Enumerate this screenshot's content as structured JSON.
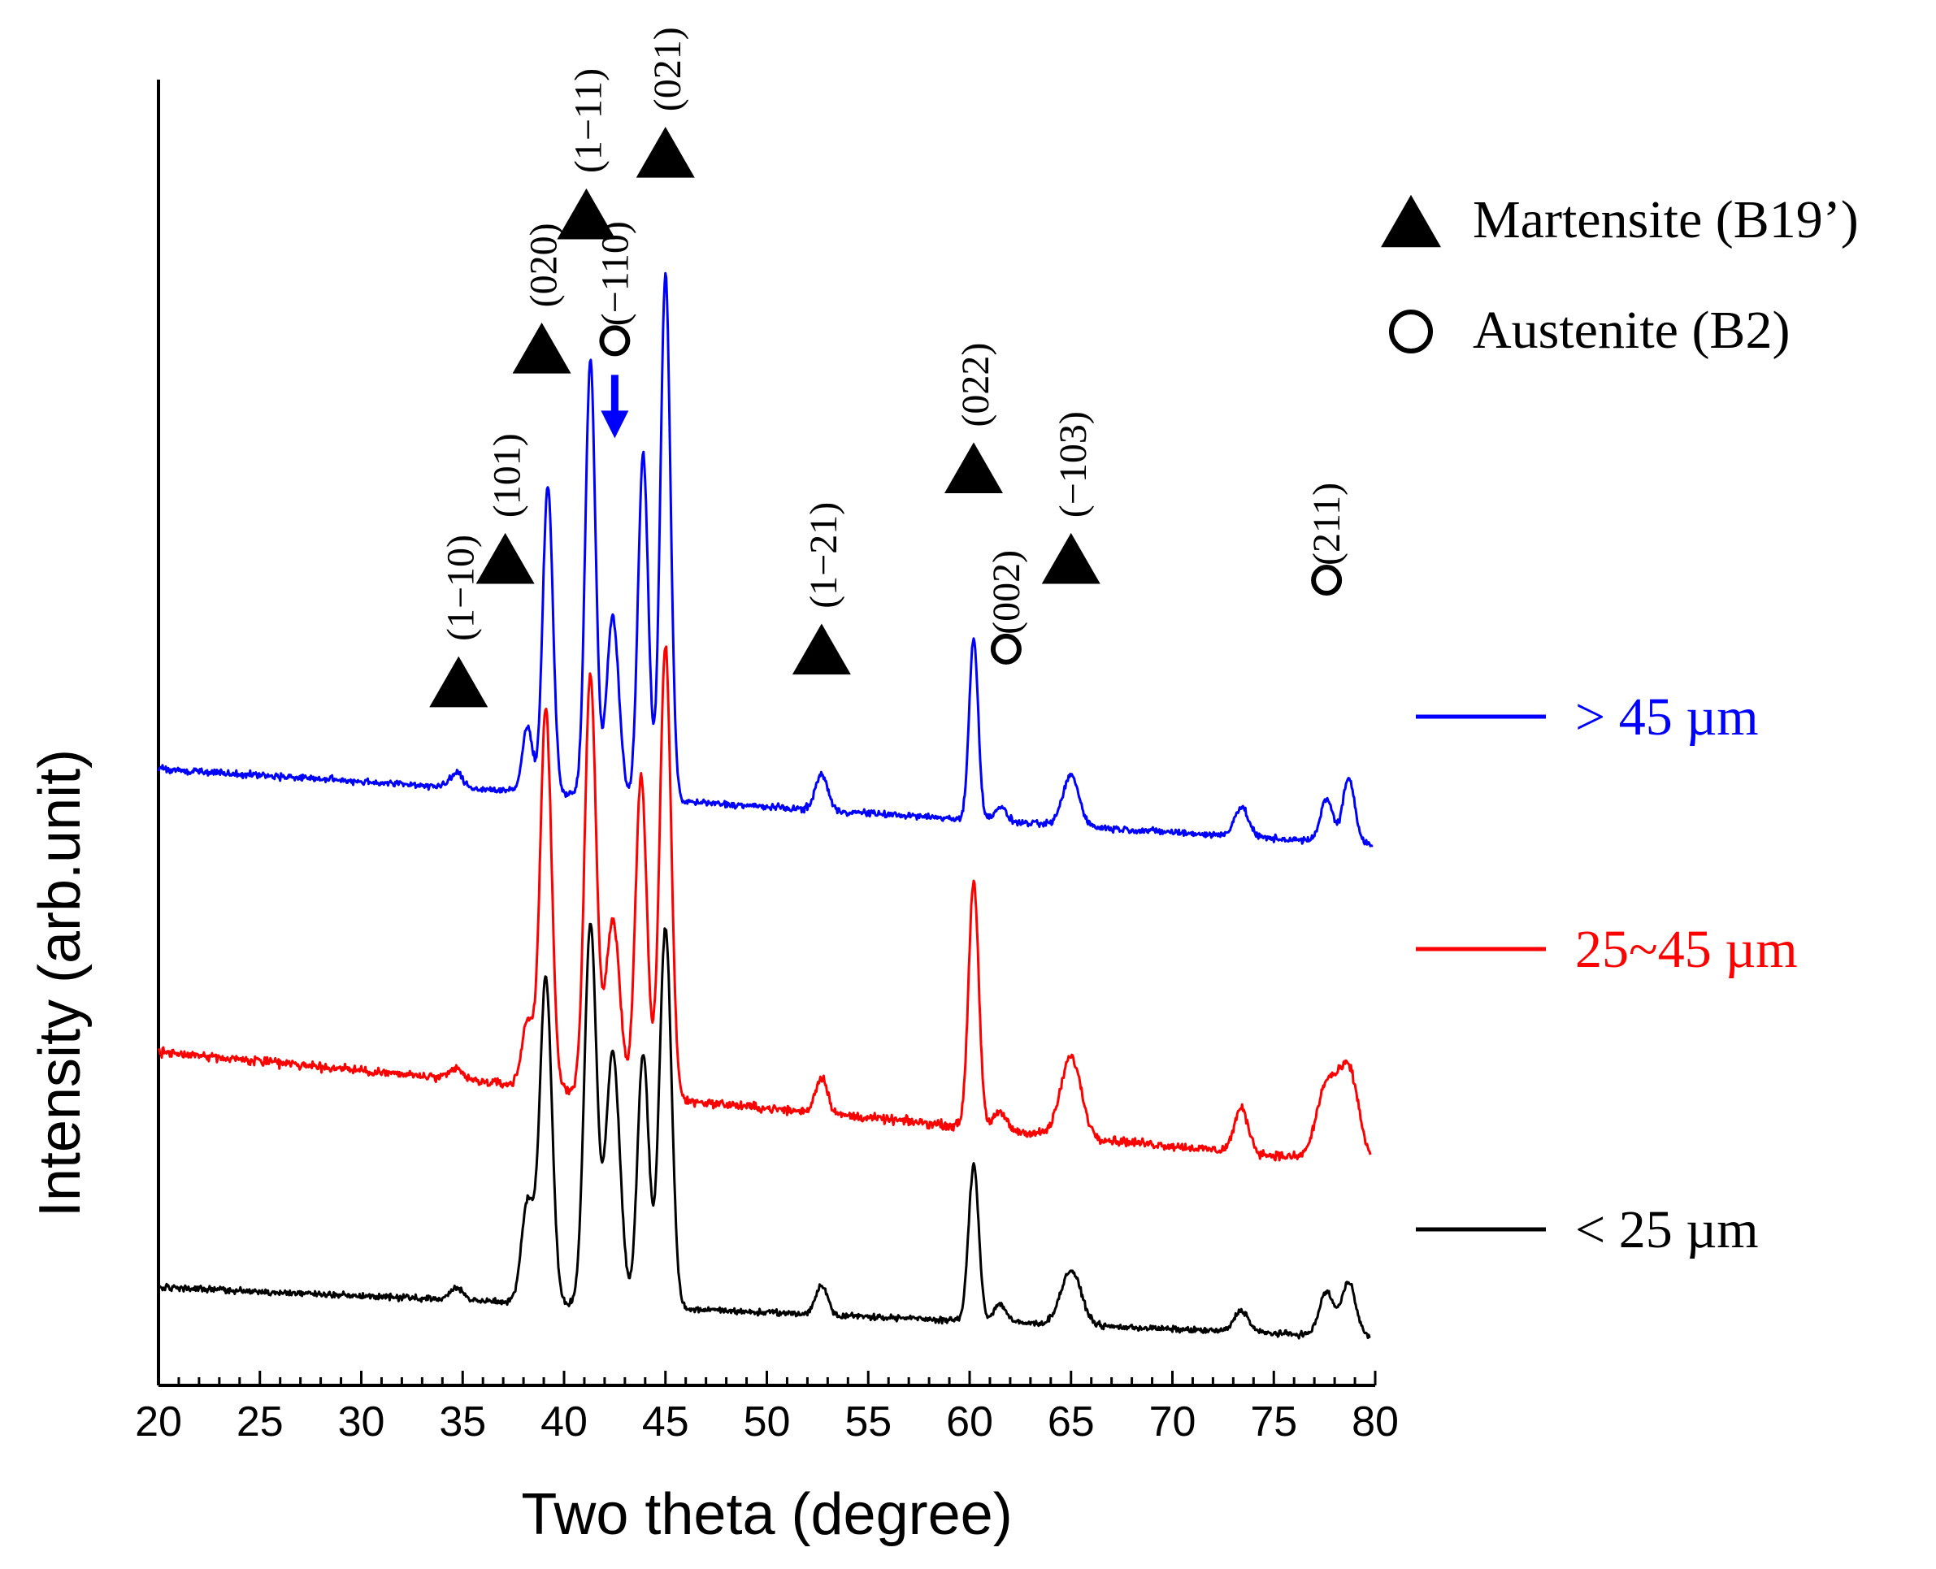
{
  "chart_data": {
    "type": "line",
    "title": "",
    "xlabel": "Two theta (degree)",
    "ylabel": "Intensity (arb.unit)",
    "xlim": [
      20,
      80
    ],
    "ylim": [
      0,
      3.6
    ],
    "xticks": [
      20,
      25,
      30,
      35,
      40,
      45,
      50,
      55,
      60,
      65,
      70,
      75,
      80
    ],
    "xtick_labels": [
      "20",
      "25",
      "30",
      "35",
      "40",
      "45",
      "50",
      "55",
      "60",
      "65",
      "70",
      "75",
      "80"
    ],
    "series": [
      {
        "name": "< 25 µm",
        "color": "#000000",
        "baseline": 0.27,
        "slope": -0.0023,
        "peaks": [
          [
            34.7,
            0.035,
            0.3
          ],
          [
            38.2,
            0.28,
            0.3
          ],
          [
            39.1,
            0.9,
            0.3
          ],
          [
            41.3,
            1.05,
            0.3
          ],
          [
            42.4,
            0.7,
            0.35
          ],
          [
            43.9,
            0.7,
            0.28
          ],
          [
            45.0,
            1.05,
            0.3
          ],
          [
            52.7,
            0.08,
            0.3
          ],
          [
            60.2,
            0.43,
            0.25
          ],
          [
            61.5,
            0.05,
            0.3
          ],
          [
            65.0,
            0.15,
            0.5
          ],
          [
            73.4,
            0.06,
            0.35
          ],
          [
            77.6,
            0.12,
            0.35
          ],
          [
            78.7,
            0.15,
            0.35
          ]
        ],
        "noise": 0.008,
        "end_x": 79.8
      },
      {
        "name": "25~45 µm",
        "color": "#ff0000",
        "baseline": 0.92,
        "slope": -0.0052,
        "peaks": [
          [
            34.7,
            0.03,
            0.3
          ],
          [
            38.2,
            0.18,
            0.28
          ],
          [
            39.1,
            1.05,
            0.28
          ],
          [
            41.3,
            1.15,
            0.28
          ],
          [
            42.4,
            0.48,
            0.35
          ],
          [
            43.8,
            0.88,
            0.28
          ],
          [
            45.0,
            1.25,
            0.28
          ],
          [
            52.7,
            0.1,
            0.3
          ],
          [
            60.2,
            0.68,
            0.25
          ],
          [
            61.5,
            0.05,
            0.3
          ],
          [
            65.0,
            0.22,
            0.5
          ],
          [
            73.4,
            0.12,
            0.35
          ],
          [
            77.6,
            0.2,
            0.5
          ],
          [
            78.7,
            0.25,
            0.5
          ]
        ],
        "noise": 0.012,
        "end_x": 79.8
      },
      {
        "name": "> 45 µm",
        "color": "#0000ff",
        "baseline": 1.7,
        "slope": -0.0035,
        "peaks": [
          [
            34.7,
            0.04,
            0.3
          ],
          [
            38.2,
            0.18,
            0.25
          ],
          [
            39.2,
            0.85,
            0.25
          ],
          [
            41.3,
            1.2,
            0.25
          ],
          [
            42.4,
            0.5,
            0.3
          ],
          [
            43.9,
            0.95,
            0.25
          ],
          [
            45.0,
            1.45,
            0.25
          ],
          [
            52.7,
            0.1,
            0.3
          ],
          [
            60.2,
            0.5,
            0.22
          ],
          [
            61.5,
            0.04,
            0.3
          ],
          [
            65.0,
            0.14,
            0.4
          ],
          [
            73.4,
            0.08,
            0.35
          ],
          [
            77.6,
            0.12,
            0.3
          ],
          [
            78.7,
            0.18,
            0.3
          ]
        ],
        "noise": 0.009,
        "end_x": 79.9
      }
    ],
    "legend": {
      "position": "right",
      "martensite_label": "Martensite (B19’)",
      "austenite_label": "Austenite (B2)",
      "series_labels": [
        "> 45 µm",
        "25~45 µm",
        "< 25 µm"
      ]
    },
    "annotations": [
      {
        "x": 34.8,
        "intensity": 1.94,
        "phase": "martensite",
        "label": "(1−10)"
      },
      {
        "x": 37.1,
        "intensity": 2.28,
        "phase": "martensite",
        "label": "(101)"
      },
      {
        "x": 38.9,
        "intensity": 2.86,
        "phase": "martensite",
        "label": "(020)"
      },
      {
        "x": 41.1,
        "intensity": 3.23,
        "phase": "martensite",
        "label": "(1−11)"
      },
      {
        "x": 42.5,
        "intensity": 2.88,
        "phase": "austenite",
        "label": "(−110)",
        "arrow": true
      },
      {
        "x": 45.0,
        "intensity": 3.4,
        "phase": "martensite",
        "label": "(021)"
      },
      {
        "x": 52.7,
        "intensity": 2.03,
        "phase": "martensite",
        "label": "(1−21)"
      },
      {
        "x": 60.2,
        "intensity": 2.53,
        "phase": "martensite",
        "label": "(022)"
      },
      {
        "x": 61.8,
        "intensity": 2.03,
        "phase": "austenite",
        "label": "(002)"
      },
      {
        "x": 65.0,
        "intensity": 2.28,
        "phase": "martensite",
        "label": "(−103)"
      },
      {
        "x": 77.6,
        "intensity": 2.22,
        "phase": "austenite",
        "label": "(211)"
      }
    ]
  }
}
